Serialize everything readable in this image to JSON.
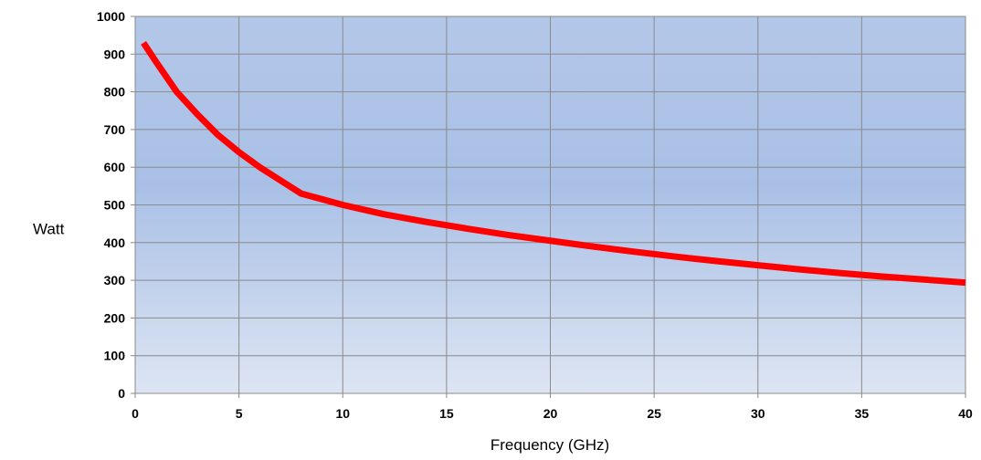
{
  "chart_data": {
    "type": "line",
    "title": "",
    "xlabel": "Frequency (GHz)",
    "ylabel": "Watt",
    "xlim": [
      0,
      40
    ],
    "ylim": [
      0,
      1000
    ],
    "xticks": [
      0,
      5,
      10,
      15,
      20,
      25,
      30,
      35,
      40
    ],
    "yticks": [
      0,
      100,
      200,
      300,
      400,
      500,
      600,
      700,
      800,
      900,
      1000
    ],
    "grid": true,
    "legend": "none",
    "colors": {
      "series": "#ff0000",
      "plot_bg_top": "#b3c7e8",
      "plot_bg_bottom": "#dde5f3",
      "grid": "#8a8a8a"
    },
    "series": [
      {
        "x": [
          0.4,
          1,
          2,
          3,
          4,
          5,
          6,
          7,
          8,
          9,
          10,
          12,
          14,
          16,
          18,
          20,
          22,
          24,
          26,
          28,
          30,
          32,
          34,
          36,
          38,
          40
        ],
        "values": [
          930,
          880,
          800,
          740,
          685,
          640,
          600,
          565,
          530,
          515,
          500,
          475,
          455,
          437,
          420,
          405,
          390,
          376,
          363,
          351,
          340,
          329,
          319,
          310,
          302,
          294
        ]
      }
    ]
  }
}
